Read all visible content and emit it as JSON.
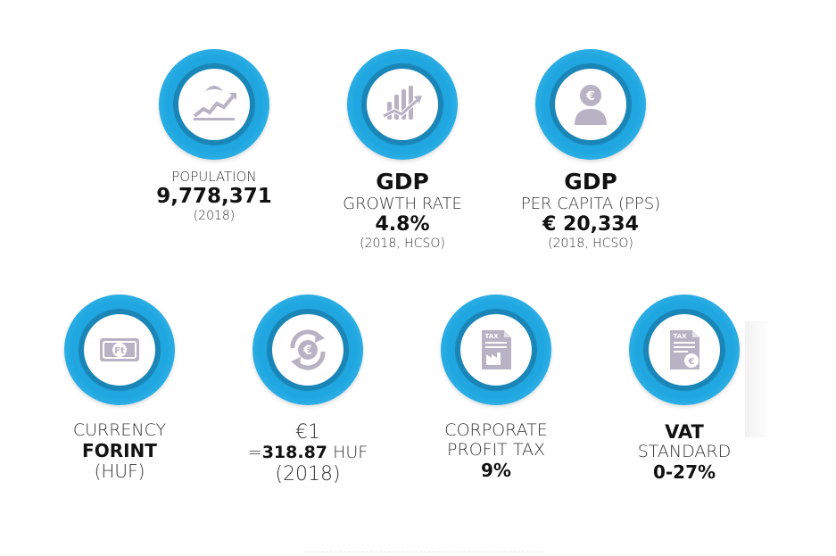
{
  "population": {
    "label": "POPULATION",
    "value": "9,778,371",
    "note": "(2018)",
    "icon": "population-growth-icon"
  },
  "gdp_growth": {
    "title": "GDP",
    "label": "GROWTH RATE",
    "value": "4.8%",
    "note": "(2018, HCSO)",
    "icon": "bar-chart-growth-icon"
  },
  "gdp_capita": {
    "title": "GDP",
    "label": "PER CAPITA (PPS)",
    "value": "€ 20,334",
    "note": "(2018, HCSO)",
    "icon": "person-euro-icon"
  },
  "currency": {
    "label": "CURRENCY",
    "value": "FORINT",
    "note": "(HUF)",
    "icon": "forint-banknote-icon"
  },
  "exchange": {
    "top": "€1",
    "eq": "=",
    "value": "318.87",
    "unit": "HUF",
    "note": "(2018)",
    "icon": "euro-exchange-icon"
  },
  "corporate_tax": {
    "label1": "CORPORATE",
    "label2": "PROFIT TAX",
    "value": "9%",
    "icon": "tax-document-factory-icon",
    "doc_text": "TAX"
  },
  "vat": {
    "title": "VAT",
    "label": "STANDARD",
    "value": "0-27%",
    "icon": "tax-document-euro-icon",
    "doc_text": "TAX"
  },
  "colors": {
    "ring": "#1fa6e0",
    "ring_dark": "#1a86b8",
    "icon": "#b7b2c4"
  }
}
